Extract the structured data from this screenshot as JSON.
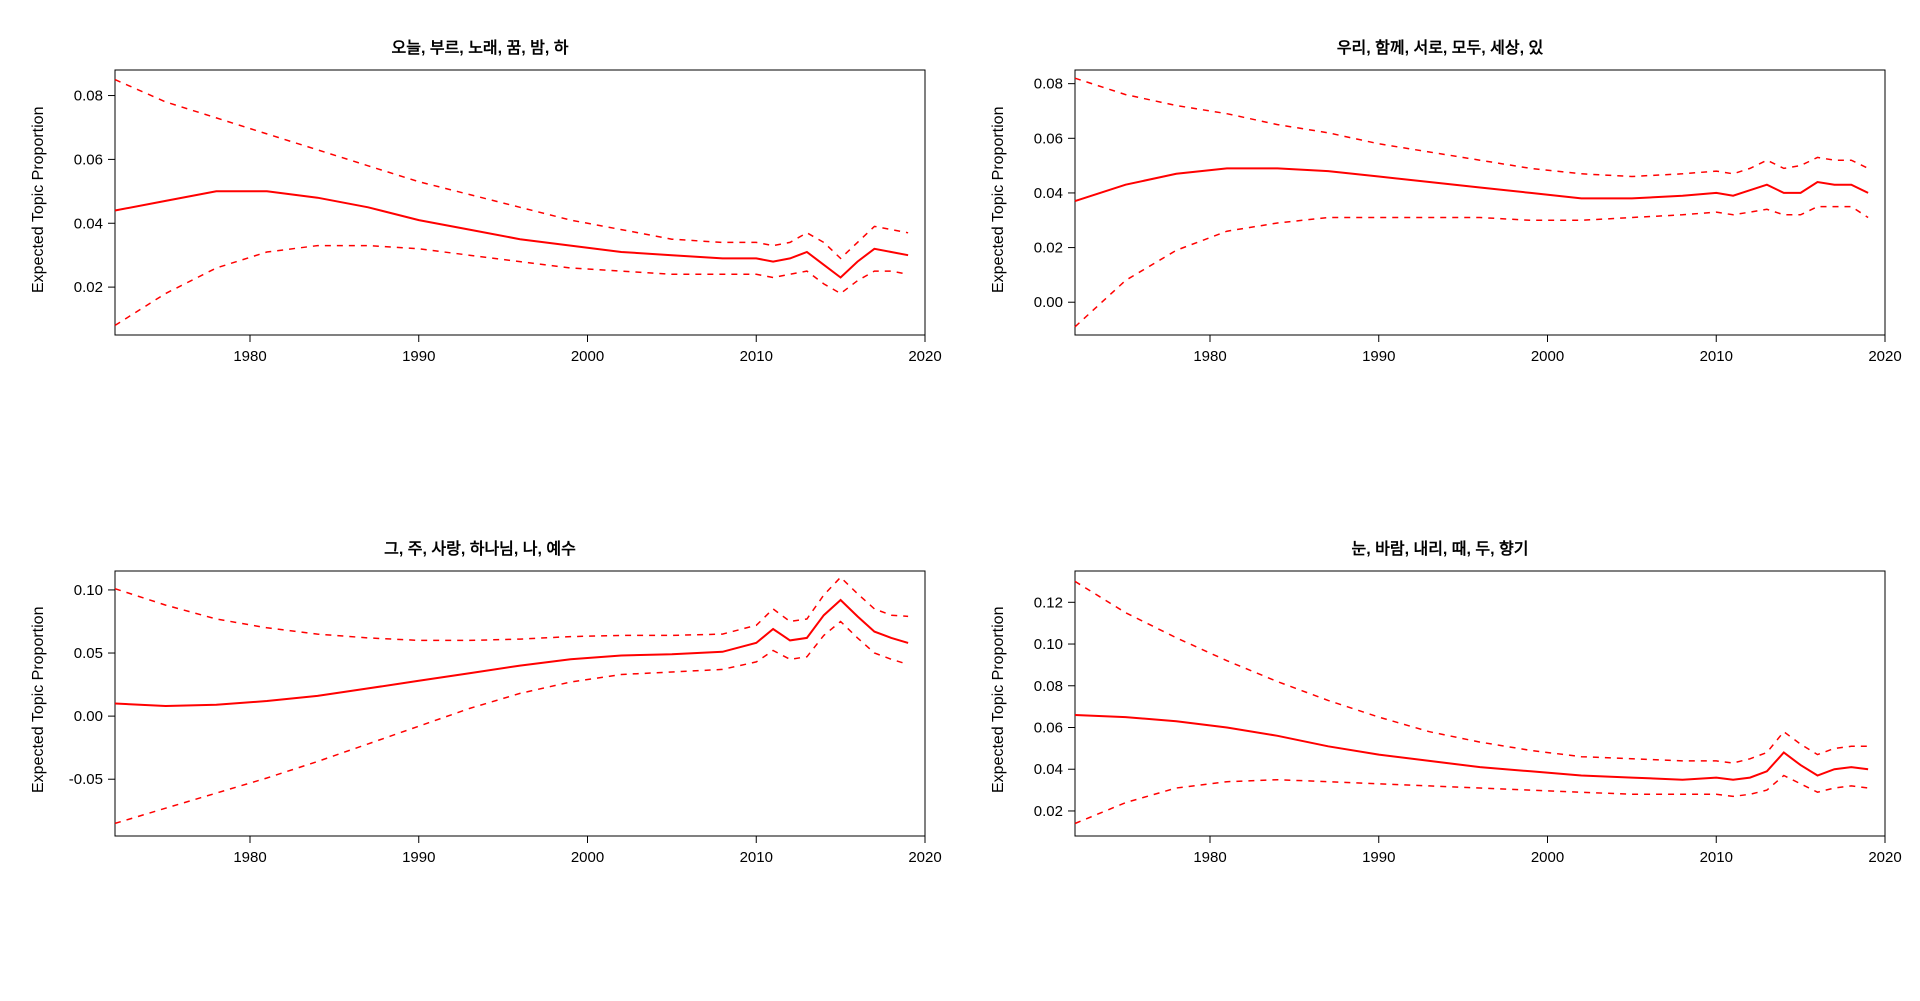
{
  "global": {
    "ylabel": "Expected Topic Proportion",
    "line_color": "#ff0000",
    "axis_color": "#000000",
    "background_color": "#ffffff",
    "title_fontsize": 16,
    "label_fontsize": 16,
    "tick_fontsize": 15,
    "dash_pattern": "6 6",
    "line_width_main": 2,
    "line_width_dash": 1.5,
    "xlim": [
      1972,
      2020
    ],
    "xticks": [
      1980,
      1990,
      2000,
      2010,
      2020
    ]
  },
  "panels": [
    {
      "id": "p0",
      "title": "오늘, 부르, 노래, 꿈, 밤, 하",
      "ylim": [
        0.005,
        0.088
      ],
      "yticks": [
        0.02,
        0.04,
        0.06,
        0.08
      ],
      "series": {
        "x": [
          1972,
          1975,
          1978,
          1981,
          1984,
          1987,
          1990,
          1993,
          1996,
          1999,
          2002,
          2005,
          2008,
          2010,
          2011,
          2012,
          2013,
          2014,
          2015,
          2016,
          2017,
          2018,
          2019
        ],
        "mid": [
          0.044,
          0.047,
          0.05,
          0.05,
          0.048,
          0.045,
          0.041,
          0.038,
          0.035,
          0.033,
          0.031,
          0.03,
          0.029,
          0.029,
          0.028,
          0.029,
          0.031,
          0.027,
          0.023,
          0.028,
          0.032,
          0.031,
          0.03
        ],
        "upper": [
          0.085,
          0.078,
          0.073,
          0.068,
          0.063,
          0.058,
          0.053,
          0.049,
          0.045,
          0.041,
          0.038,
          0.035,
          0.034,
          0.034,
          0.033,
          0.034,
          0.037,
          0.034,
          0.029,
          0.034,
          0.039,
          0.038,
          0.037
        ],
        "lower": [
          0.008,
          0.018,
          0.026,
          0.031,
          0.033,
          0.033,
          0.032,
          0.03,
          0.028,
          0.026,
          0.025,
          0.024,
          0.024,
          0.024,
          0.023,
          0.024,
          0.025,
          0.021,
          0.018,
          0.022,
          0.025,
          0.025,
          0.024
        ]
      }
    },
    {
      "id": "p1",
      "title": "우리, 함께, 서로, 모두, 세상, 있",
      "ylim": [
        -0.012,
        0.085
      ],
      "yticks": [
        0.0,
        0.02,
        0.04,
        0.06,
        0.08
      ],
      "series": {
        "x": [
          1972,
          1975,
          1978,
          1981,
          1984,
          1987,
          1990,
          1993,
          1996,
          1999,
          2002,
          2005,
          2008,
          2010,
          2011,
          2012,
          2013,
          2014,
          2015,
          2016,
          2017,
          2018,
          2019
        ],
        "mid": [
          0.037,
          0.043,
          0.047,
          0.049,
          0.049,
          0.048,
          0.046,
          0.044,
          0.042,
          0.04,
          0.038,
          0.038,
          0.039,
          0.04,
          0.039,
          0.041,
          0.043,
          0.04,
          0.04,
          0.044,
          0.043,
          0.043,
          0.04
        ],
        "upper": [
          0.082,
          0.076,
          0.072,
          0.069,
          0.065,
          0.062,
          0.058,
          0.055,
          0.052,
          0.049,
          0.047,
          0.046,
          0.047,
          0.048,
          0.047,
          0.049,
          0.052,
          0.049,
          0.05,
          0.053,
          0.052,
          0.052,
          0.049
        ],
        "lower": [
          -0.009,
          0.008,
          0.019,
          0.026,
          0.029,
          0.031,
          0.031,
          0.031,
          0.031,
          0.03,
          0.03,
          0.031,
          0.032,
          0.033,
          0.032,
          0.033,
          0.034,
          0.032,
          0.032,
          0.035,
          0.035,
          0.035,
          0.031
        ]
      }
    },
    {
      "id": "p2",
      "title": "그, 주, 사랑, 하나님, 나, 예수",
      "ylim": [
        -0.095,
        0.115
      ],
      "yticks": [
        -0.05,
        0.0,
        0.05,
        0.1
      ],
      "series": {
        "x": [
          1972,
          1975,
          1978,
          1981,
          1984,
          1987,
          1990,
          1993,
          1996,
          1999,
          2002,
          2005,
          2008,
          2010,
          2011,
          2012,
          2013,
          2014,
          2015,
          2016,
          2017,
          2018,
          2019
        ],
        "mid": [
          0.01,
          0.008,
          0.009,
          0.012,
          0.016,
          0.022,
          0.028,
          0.034,
          0.04,
          0.045,
          0.048,
          0.049,
          0.051,
          0.058,
          0.069,
          0.06,
          0.062,
          0.08,
          0.092,
          0.079,
          0.067,
          0.062,
          0.058
        ],
        "upper": [
          0.101,
          0.088,
          0.077,
          0.07,
          0.065,
          0.062,
          0.06,
          0.06,
          0.061,
          0.063,
          0.064,
          0.064,
          0.065,
          0.072,
          0.085,
          0.075,
          0.077,
          0.096,
          0.11,
          0.097,
          0.085,
          0.08,
          0.079
        ],
        "lower": [
          -0.085,
          -0.073,
          -0.061,
          -0.049,
          -0.036,
          -0.022,
          -0.008,
          0.006,
          0.018,
          0.027,
          0.033,
          0.035,
          0.037,
          0.043,
          0.052,
          0.045,
          0.047,
          0.064,
          0.075,
          0.062,
          0.05,
          0.045,
          0.041
        ]
      }
    },
    {
      "id": "p3",
      "title": "눈, 바람, 내리, 때, 두, 향기",
      "ylim": [
        0.008,
        0.135
      ],
      "yticks": [
        0.02,
        0.04,
        0.06,
        0.08,
        0.1,
        0.12
      ],
      "series": {
        "x": [
          1972,
          1975,
          1978,
          1981,
          1984,
          1987,
          1990,
          1993,
          1996,
          1999,
          2002,
          2005,
          2008,
          2010,
          2011,
          2012,
          2013,
          2014,
          2015,
          2016,
          2017,
          2018,
          2019
        ],
        "mid": [
          0.066,
          0.065,
          0.063,
          0.06,
          0.056,
          0.051,
          0.047,
          0.044,
          0.041,
          0.039,
          0.037,
          0.036,
          0.035,
          0.036,
          0.035,
          0.036,
          0.039,
          0.048,
          0.042,
          0.037,
          0.04,
          0.041,
          0.04
        ],
        "upper": [
          0.13,
          0.115,
          0.103,
          0.092,
          0.082,
          0.073,
          0.065,
          0.058,
          0.053,
          0.049,
          0.046,
          0.045,
          0.044,
          0.044,
          0.043,
          0.045,
          0.048,
          0.058,
          0.052,
          0.047,
          0.05,
          0.051,
          0.051
        ],
        "lower": [
          0.014,
          0.024,
          0.031,
          0.034,
          0.035,
          0.034,
          0.033,
          0.032,
          0.031,
          0.03,
          0.029,
          0.028,
          0.028,
          0.028,
          0.027,
          0.028,
          0.03,
          0.037,
          0.033,
          0.029,
          0.031,
          0.032,
          0.031
        ]
      }
    }
  ]
}
